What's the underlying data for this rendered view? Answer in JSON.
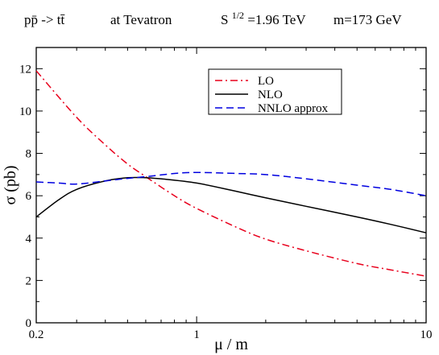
{
  "chart_data": {
    "type": "line",
    "title_parts": {
      "process": "pp̄ -> tt̄",
      "collider": "at  Tevatron",
      "energy_base": "S",
      "energy_exp": "1/2",
      "energy_value": "=1.96 TeV",
      "mass": "m=173 GeV"
    },
    "xlabel": "μ / m",
    "ylabel": "σ (pb)",
    "xscale": "log",
    "xlim": [
      0.2,
      10
    ],
    "ylim": [
      0,
      13
    ],
    "xticks": [
      {
        "v": 0.2,
        "label": "0.2"
      },
      {
        "v": 1,
        "label": "1"
      },
      {
        "v": 10,
        "label": "10"
      }
    ],
    "yticks": [
      0,
      2,
      4,
      6,
      8,
      10,
      12
    ],
    "grid": false,
    "legend_position": "top-right",
    "series": [
      {
        "name": "LO",
        "color": "#e8001c",
        "dash": "dash-dot",
        "x": [
          0.2,
          0.3,
          0.4,
          0.5,
          0.6,
          0.8,
          1.0,
          1.5,
          2.0,
          3.0,
          5.0,
          7.0,
          10.0
        ],
        "y": [
          11.9,
          9.7,
          8.4,
          7.5,
          6.9,
          6.0,
          5.4,
          4.5,
          3.95,
          3.4,
          2.8,
          2.5,
          2.2
        ]
      },
      {
        "name": "NLO",
        "color": "#000000",
        "dash": "solid",
        "x": [
          0.2,
          0.25,
          0.3,
          0.4,
          0.5,
          0.6,
          0.7,
          1.0,
          1.5,
          2.0,
          3.0,
          5.0,
          7.0,
          10.0
        ],
        "y": [
          5.0,
          5.8,
          6.3,
          6.7,
          6.85,
          6.85,
          6.8,
          6.6,
          6.2,
          5.9,
          5.5,
          5.0,
          4.65,
          4.25
        ]
      },
      {
        "name": "NNLO approx",
        "color": "#0000e0",
        "dash": "dashed",
        "x": [
          0.2,
          0.25,
          0.3,
          0.4,
          0.5,
          0.6,
          0.8,
          1.0,
          1.5,
          2.0,
          3.0,
          5.0,
          7.0,
          10.0
        ],
        "y": [
          6.65,
          6.6,
          6.55,
          6.7,
          6.82,
          6.9,
          7.05,
          7.1,
          7.05,
          7.0,
          6.8,
          6.5,
          6.3,
          6.0
        ]
      }
    ]
  }
}
